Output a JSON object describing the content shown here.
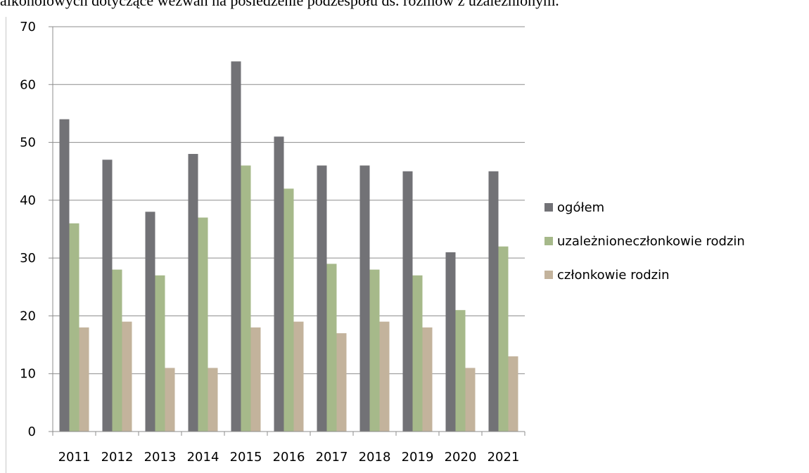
{
  "top_text": "alkoholowych dotyczące wezwań na posiedzenie podzespołu ds. rozmów z uzależnionym.",
  "chart_data": {
    "type": "bar",
    "title": "",
    "xlabel": "",
    "ylabel": "",
    "ylim": [
      0,
      70
    ],
    "yticks": [
      0,
      10,
      20,
      30,
      40,
      50,
      60,
      70
    ],
    "grid": true,
    "legend": "right",
    "categories": [
      "2011",
      "2012",
      "2013",
      "2014",
      "2015",
      "2016",
      "2017",
      "2018",
      "2019",
      "2020",
      "2021"
    ],
    "series": [
      {
        "name": "ogółem",
        "color": "#727276",
        "values": [
          54,
          47,
          38,
          48,
          64,
          51,
          46,
          46,
          45,
          31,
          45
        ]
      },
      {
        "name": "uzależnioneczłonkowie rodzin",
        "color": "#a6b98a",
        "values": [
          36,
          28,
          27,
          37,
          46,
          42,
          29,
          28,
          27,
          21,
          32
        ]
      },
      {
        "name": "członkowie rodzin",
        "color": "#c3b39c",
        "values": [
          18,
          19,
          11,
          11,
          18,
          19,
          17,
          19,
          18,
          11,
          13
        ]
      }
    ]
  }
}
